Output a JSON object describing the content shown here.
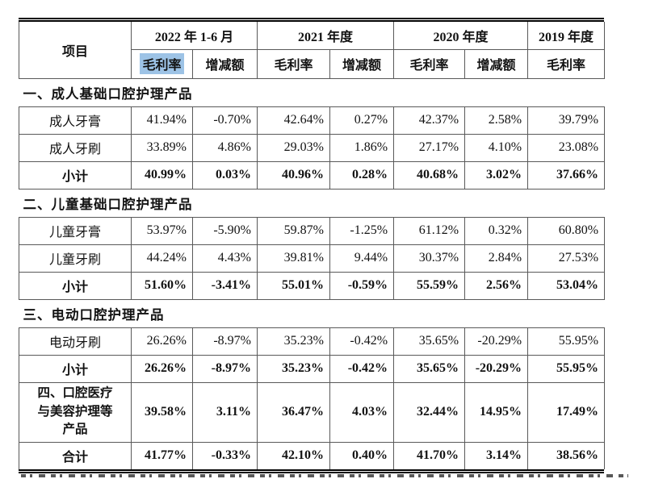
{
  "page": {
    "background": "#ffffff",
    "highlight_color": "#9DC3E6",
    "border_color": "#595959"
  },
  "table": {
    "header": {
      "item_label": "项目",
      "col_groups": [
        {
          "label": "2022 年 1-6 月",
          "sub": [
            "毛利率",
            "增减额"
          ]
        },
        {
          "label": "2021 年度",
          "sub": [
            "毛利率",
            "增减额"
          ]
        },
        {
          "label": "2020 年度",
          "sub": [
            "毛利率",
            "增减额"
          ]
        },
        {
          "label": "2019 年度",
          "sub": [
            "毛利率"
          ]
        }
      ]
    },
    "rows": [
      {
        "type": "section",
        "label": "一、成人基础口腔护理产品"
      },
      {
        "type": "data",
        "label": "成人牙膏",
        "values": [
          "41.94%",
          "-0.70%",
          "42.64%",
          "0.27%",
          "42.37%",
          "2.58%",
          "39.79%"
        ]
      },
      {
        "type": "data",
        "label": "成人牙刷",
        "values": [
          "33.89%",
          "4.86%",
          "29.03%",
          "1.86%",
          "27.17%",
          "4.10%",
          "23.08%"
        ]
      },
      {
        "type": "subtotal",
        "label": "小计",
        "values": [
          "40.99%",
          "0.03%",
          "40.96%",
          "0.28%",
          "40.68%",
          "3.02%",
          "37.66%"
        ]
      },
      {
        "type": "section",
        "label": "二、儿童基础口腔护理产品"
      },
      {
        "type": "data",
        "label": "儿童牙膏",
        "values": [
          "53.97%",
          "-5.90%",
          "59.87%",
          "-1.25%",
          "61.12%",
          "0.32%",
          "60.80%"
        ]
      },
      {
        "type": "data",
        "label": "儿童牙刷",
        "values": [
          "44.24%",
          "4.43%",
          "39.81%",
          "9.44%",
          "30.37%",
          "2.84%",
          "27.53%"
        ]
      },
      {
        "type": "subtotal",
        "label": "小计",
        "values": [
          "51.60%",
          "-3.41%",
          "55.01%",
          "-0.59%",
          "55.59%",
          "2.56%",
          "53.04%"
        ]
      },
      {
        "type": "section",
        "label": "三、电动口腔护理产品"
      },
      {
        "type": "data",
        "label": "电动牙刷",
        "values": [
          "26.26%",
          "-8.97%",
          "35.23%",
          "-0.42%",
          "35.65%",
          "-20.29%",
          "55.95%"
        ]
      },
      {
        "type": "subtotal",
        "label": "小计",
        "values": [
          "26.26%",
          "-8.97%",
          "35.23%",
          "-0.42%",
          "35.65%",
          "-20.29%",
          "55.95%"
        ]
      },
      {
        "type": "bolddata",
        "label": "四、口腔医疗与美容护理等产品",
        "values": [
          "39.58%",
          "3.11%",
          "36.47%",
          "4.03%",
          "32.44%",
          "14.95%",
          "17.49%"
        ]
      },
      {
        "type": "total",
        "label": "合计",
        "values": [
          "41.77%",
          "-0.33%",
          "42.10%",
          "0.40%",
          "41.70%",
          "3.14%",
          "38.56%"
        ]
      }
    ]
  }
}
